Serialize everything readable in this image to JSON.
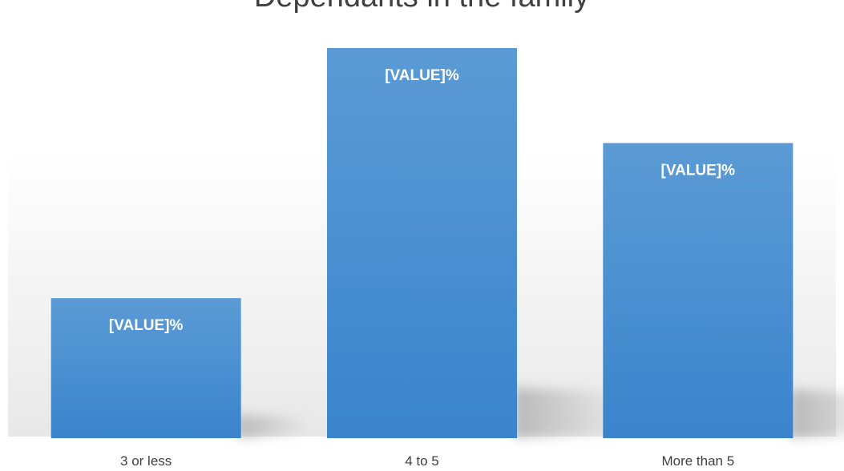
{
  "chart_data": {
    "type": "bar",
    "title": "Dependants in the family",
    "categories": [
      "3 or less",
      "4 to 5",
      "More than 5"
    ],
    "series": [
      {
        "values": [
          28,
          78,
          59
        ],
        "data_labels": [
          "[VALUE]%",
          "[VALUE]%",
          "[VALUE]%"
        ]
      }
    ],
    "xlabel": "",
    "ylabel": "",
    "ylim": [
      0,
      86
    ],
    "grid": false,
    "legend": "none",
    "colors": {
      "bar_top": "#5b9bd5",
      "bar_bottom": "#3a84cc",
      "label": "#ffffff",
      "title": "#404040",
      "tick": "#404040",
      "background_top": "#ffffff",
      "background_bottom": "#e8e8e8",
      "shadow": "#a8a8a8"
    }
  }
}
